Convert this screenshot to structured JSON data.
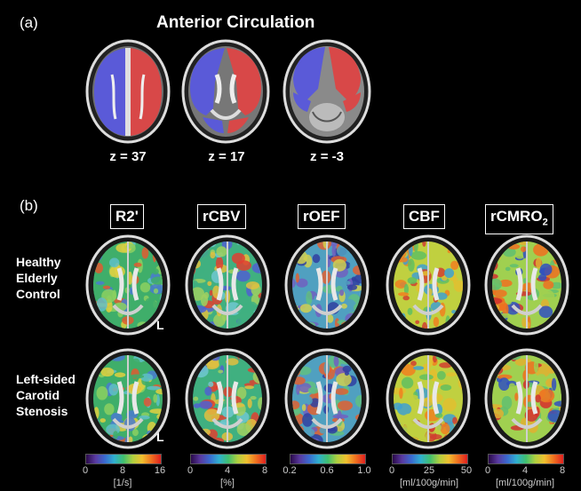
{
  "panel_a": {
    "label": "(a)",
    "title": "Anterior Circulation",
    "slices": [
      {
        "label": "z = 37"
      },
      {
        "label": "z = 17"
      },
      {
        "label": "z = -3"
      }
    ]
  },
  "panel_b": {
    "label": "(b)",
    "columns": [
      {
        "label": "R2'",
        "ticks": [
          "0",
          "8",
          "16"
        ],
        "unit": "[1/s]"
      },
      {
        "label": "rCBV",
        "ticks": [
          "0",
          "4",
          "8"
        ],
        "unit": "[%]"
      },
      {
        "label": "rOEF",
        "ticks": [
          "0.2",
          "0.6",
          "1.0"
        ],
        "unit": ""
      },
      {
        "label": "CBF",
        "ticks": [
          "0",
          "25",
          "50"
        ],
        "unit": "[ml/100g/min]"
      },
      {
        "label": "rCMRO",
        "sub": "2",
        "ticks": [
          "0",
          "4",
          "8"
        ],
        "unit": "[ml/100g/min]"
      }
    ],
    "rows": [
      {
        "line1": "Healthy",
        "line2": "Elderly",
        "line3": "Control"
      },
      {
        "line1": "Left-sided",
        "line2": "Carotid",
        "line3": "Stenosis"
      }
    ],
    "side_marker": "L"
  }
}
